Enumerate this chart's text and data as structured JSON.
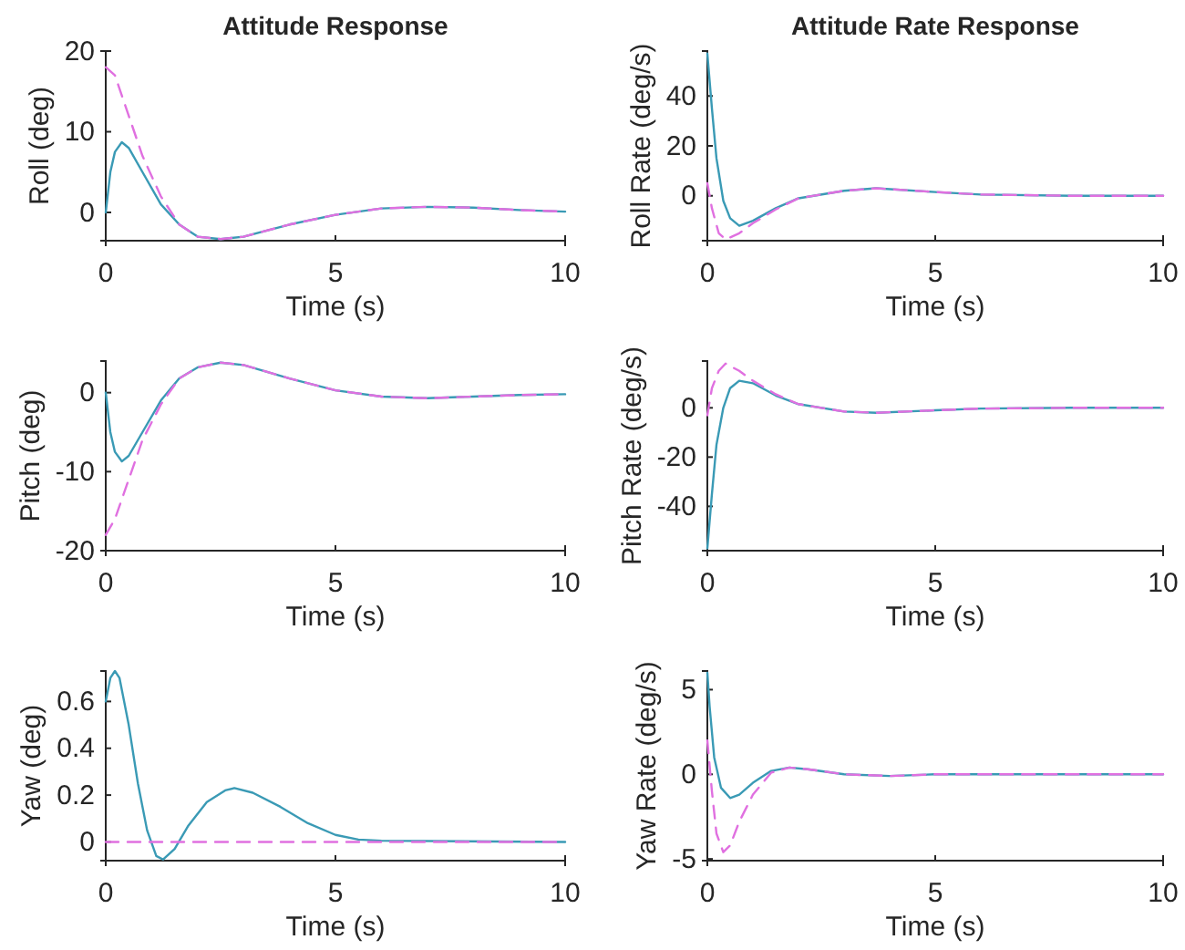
{
  "chart_data": [
    {
      "type": "line",
      "title": "Attitude Response",
      "xlabel": "Time (s)",
      "ylabel": "Roll (deg)",
      "xlim": [
        0,
        10
      ],
      "xticks": [
        0,
        5,
        10
      ],
      "ylim": [
        -3.5,
        20
      ],
      "yticks": [
        0,
        10,
        20
      ],
      "grid": false,
      "series": [
        {
          "color": "#3a9ab5",
          "line_style": "solid",
          "x": [
            0,
            0.1,
            0.2,
            0.35,
            0.5,
            0.8,
            1.2,
            1.6,
            2,
            2.5,
            3,
            4,
            5,
            6,
            7,
            8,
            9,
            10
          ],
          "values": [
            0,
            5,
            7.5,
            8.7,
            8,
            5,
            1,
            -1.5,
            -3,
            -3.3,
            -3,
            -1.5,
            -0.3,
            0.5,
            0.7,
            0.6,
            0.3,
            0.1
          ]
        },
        {
          "color": "#e070e0",
          "line_style": "dashed",
          "x": [
            0,
            0.2,
            0.5,
            0.8,
            1.2,
            1.6,
            2,
            2.5,
            3,
            4,
            5,
            6,
            7,
            8,
            9,
            10
          ],
          "values": [
            18,
            17,
            12,
            7,
            2,
            -1.5,
            -3,
            -3.3,
            -3,
            -1.5,
            -0.3,
            0.5,
            0.7,
            0.6,
            0.3,
            0.1
          ]
        }
      ]
    },
    {
      "type": "line",
      "title": "Attitude Rate Response",
      "xlabel": "Time (s)",
      "ylabel": "Roll Rate (deg/s)",
      "xlim": [
        0,
        10
      ],
      "xticks": [
        0,
        5,
        10
      ],
      "ylim": [
        -18,
        58
      ],
      "yticks": [
        0,
        20,
        40
      ],
      "grid": false,
      "series": [
        {
          "color": "#3a9ab5",
          "line_style": "solid",
          "x": [
            0,
            0.1,
            0.2,
            0.35,
            0.5,
            0.7,
            1,
            1.5,
            2,
            3,
            3.7,
            5,
            6,
            8,
            10
          ],
          "values": [
            57,
            35,
            15,
            -2,
            -9,
            -12,
            -10,
            -5,
            -1,
            2,
            3,
            1.5,
            0.5,
            0,
            0
          ]
        },
        {
          "color": "#e070e0",
          "line_style": "dashed",
          "x": [
            0,
            0.1,
            0.25,
            0.4,
            0.7,
            1,
            1.5,
            2,
            3,
            3.7,
            5,
            6,
            8,
            10
          ],
          "values": [
            5,
            -5,
            -15,
            -17.5,
            -15,
            -11,
            -5.5,
            -1,
            2,
            3,
            1.5,
            0.5,
            0,
            0
          ]
        }
      ]
    },
    {
      "type": "line",
      "xlabel": "Time (s)",
      "ylabel": "Pitch (deg)",
      "xlim": [
        0,
        10
      ],
      "xticks": [
        0,
        5,
        10
      ],
      "ylim": [
        -20,
        4
      ],
      "yticks": [
        -20,
        -10,
        0
      ],
      "grid": false,
      "series": [
        {
          "color": "#3a9ab5",
          "line_style": "solid",
          "x": [
            0,
            0.1,
            0.2,
            0.35,
            0.5,
            0.8,
            1.2,
            1.6,
            2,
            2.5,
            3,
            4,
            5,
            6,
            7,
            8,
            9,
            10
          ],
          "values": [
            0,
            -5,
            -7.5,
            -8.7,
            -8,
            -5,
            -1,
            1.8,
            3.2,
            3.8,
            3.5,
            1.8,
            0.3,
            -0.5,
            -0.7,
            -0.5,
            -0.3,
            -0.2
          ]
        },
        {
          "color": "#e070e0",
          "line_style": "dashed",
          "x": [
            0,
            0.2,
            0.5,
            0.8,
            1.2,
            1.6,
            2,
            2.5,
            3,
            4,
            5,
            6,
            7,
            8,
            9,
            10
          ],
          "values": [
            -18,
            -16,
            -11,
            -6,
            -1.5,
            1.8,
            3.2,
            3.8,
            3.5,
            1.8,
            0.3,
            -0.5,
            -0.7,
            -0.5,
            -0.3,
            -0.2
          ]
        }
      ]
    },
    {
      "type": "line",
      "xlabel": "Time (s)",
      "ylabel": "Pitch Rate (deg/s)",
      "xlim": [
        0,
        10
      ],
      "xticks": [
        0,
        5,
        10
      ],
      "ylim": [
        -58,
        19
      ],
      "yticks": [
        -40,
        -20,
        0
      ],
      "grid": false,
      "series": [
        {
          "color": "#3a9ab5",
          "line_style": "solid",
          "x": [
            0,
            0.1,
            0.2,
            0.35,
            0.5,
            0.7,
            1,
            1.5,
            2,
            3,
            3.7,
            5,
            6,
            8,
            10
          ],
          "values": [
            -57,
            -35,
            -15,
            0,
            8,
            11,
            10,
            5,
            1.5,
            -1.5,
            -2,
            -1,
            -0.3,
            0,
            0
          ]
        },
        {
          "color": "#e070e0",
          "line_style": "dashed",
          "x": [
            0,
            0.1,
            0.25,
            0.4,
            0.7,
            1,
            1.5,
            2,
            3,
            3.7,
            5,
            6,
            8,
            10
          ],
          "values": [
            -3,
            8,
            15,
            18,
            15,
            11,
            5.5,
            1.5,
            -1.5,
            -2,
            -1,
            -0.3,
            0,
            0
          ]
        }
      ]
    },
    {
      "type": "line",
      "xlabel": "Time (s)",
      "ylabel": "Yaw (deg)",
      "xlim": [
        0,
        10
      ],
      "xticks": [
        0,
        5,
        10
      ],
      "ylim": [
        -0.08,
        0.73
      ],
      "yticks": [
        0,
        0.2,
        0.4,
        0.6
      ],
      "grid": false,
      "series": [
        {
          "color": "#3a9ab5",
          "line_style": "solid",
          "x": [
            0,
            0.1,
            0.2,
            0.3,
            0.5,
            0.7,
            0.9,
            1.1,
            1.25,
            1.5,
            1.8,
            2.2,
            2.6,
            2.8,
            3.2,
            3.8,
            4.4,
            5,
            5.5,
            6,
            10
          ],
          "values": [
            0.6,
            0.7,
            0.73,
            0.7,
            0.5,
            0.25,
            0.05,
            -0.06,
            -0.075,
            -0.03,
            0.07,
            0.17,
            0.22,
            0.23,
            0.21,
            0.15,
            0.08,
            0.03,
            0.01,
            0.005,
            0
          ]
        },
        {
          "color": "#e070e0",
          "line_style": "dashed",
          "x": [
            0,
            10
          ],
          "values": [
            0,
            0
          ]
        }
      ]
    },
    {
      "type": "line",
      "xlabel": "Time (s)",
      "ylabel": "Yaw Rate (deg/s)",
      "xlim": [
        0,
        10
      ],
      "xticks": [
        0,
        5,
        10
      ],
      "ylim": [
        -5.1,
        6.1
      ],
      "yticks": [
        -5,
        0,
        5
      ],
      "grid": false,
      "series": [
        {
          "color": "#3a9ab5",
          "line_style": "solid",
          "x": [
            0,
            0.05,
            0.15,
            0.3,
            0.5,
            0.7,
            1,
            1.4,
            1.8,
            2.2,
            3,
            4,
            5,
            10
          ],
          "values": [
            6,
            4,
            1,
            -0.8,
            -1.4,
            -1.2,
            -0.5,
            0.2,
            0.4,
            0.3,
            0,
            -0.1,
            0,
            0
          ]
        },
        {
          "color": "#e070e0",
          "line_style": "dashed",
          "x": [
            0,
            0.1,
            0.2,
            0.35,
            0.5,
            0.7,
            1,
            1.4,
            1.8,
            2.2,
            3,
            4,
            5,
            10
          ],
          "values": [
            2,
            -1,
            -3.5,
            -4.6,
            -4.2,
            -2.8,
            -1.2,
            0.1,
            0.4,
            0.3,
            0,
            -0.1,
            0,
            0
          ]
        }
      ]
    }
  ]
}
